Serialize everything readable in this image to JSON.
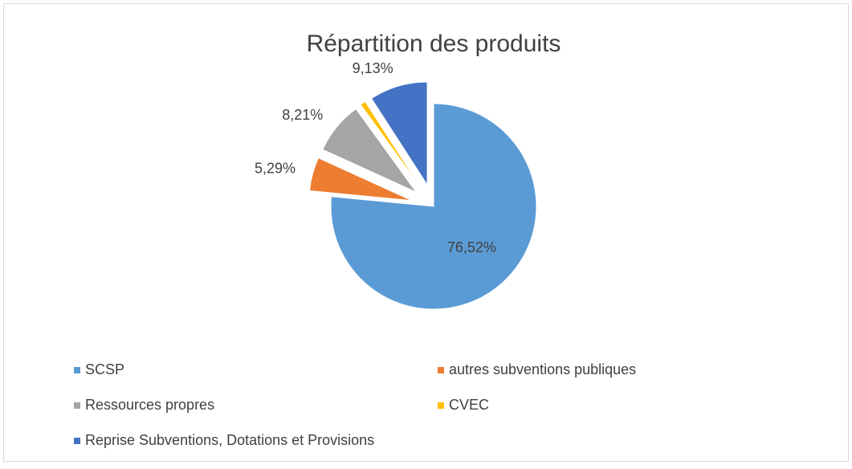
{
  "chart_data": {
    "type": "pie",
    "title": "Répartition des produits",
    "categories": [
      "SCSP",
      "autres subventions publiques",
      "Ressources propres",
      "CVEC",
      "Reprise Subventions, Dotations et Provisions"
    ],
    "values": [
      76.52,
      5.29,
      8.21,
      0.85,
      9.13
    ],
    "value_labels": [
      "76,52%",
      "5,29%",
      "8,21%",
      null,
      "9,13%"
    ],
    "colors": [
      "#5b9bd5",
      "#ed7d31",
      "#a5a5a5",
      "#ffc000",
      "#4472c4"
    ],
    "legend": "bottom"
  }
}
